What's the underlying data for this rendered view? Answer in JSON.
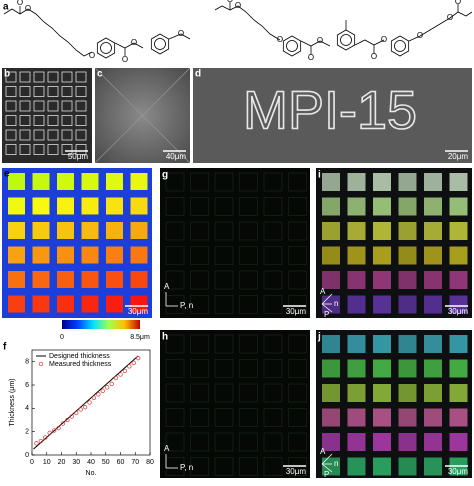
{
  "panels": {
    "a": {
      "label": "a",
      "molecule_1_atoms": [
        "O",
        "O",
        "O",
        "O",
        "O",
        "O"
      ],
      "molecule_2_atoms": [
        "O",
        "O",
        "O",
        "O",
        "O",
        "O",
        "O",
        "O",
        "O",
        "O"
      ]
    },
    "b": {
      "label": "b",
      "scale_bar": "50μm"
    },
    "c": {
      "label": "c",
      "scale_bar": "40μm"
    },
    "d": {
      "label": "d",
      "scale_bar": "20μm",
      "pattern_text": "MPI-15"
    },
    "e": {
      "label": "e",
      "scale_bar": "30μm",
      "colorbar_min": "0",
      "colorbar_max": "8.5μm"
    },
    "f": {
      "label": "f",
      "type": "scatter",
      "x_label": "No.",
      "y_label": "Thickness (μm)",
      "xlim": [
        0,
        80
      ],
      "ylim": [
        0,
        9
      ],
      "xticks": [
        0,
        10,
        20,
        30,
        40,
        50,
        60,
        70,
        80
      ],
      "yticks": [
        0,
        2,
        4,
        6,
        8
      ],
      "series": [
        {
          "name": "Designed thickness",
          "color": "#000000",
          "x": [
            1,
            72
          ],
          "values": [
            0.5,
            8.5
          ]
        },
        {
          "name": "Measured thickness",
          "color": "#e03030",
          "x": [
            3,
            6,
            9,
            12,
            15,
            18,
            21,
            24,
            27,
            30,
            33,
            36,
            39,
            42,
            45,
            48,
            51,
            54,
            57,
            60,
            63,
            66,
            69,
            72
          ],
          "values": [
            1.0,
            1.2,
            1.5,
            1.9,
            2.1,
            2.3,
            2.7,
            3.0,
            3.3,
            3.6,
            3.9,
            4.1,
            4.5,
            4.9,
            5.2,
            5.5,
            5.8,
            6.1,
            6.6,
            6.9,
            7.2,
            7.6,
            7.9,
            8.3
          ]
        }
      ]
    },
    "g": {
      "label": "g",
      "scale_bar": "30μm",
      "analyzer": "A",
      "polarizer": "P, n"
    },
    "h": {
      "label": "h",
      "scale_bar": "30μm",
      "analyzer": "A",
      "polarizer": "P, n"
    },
    "i": {
      "label": "i",
      "scale_bar": "30μm",
      "analyzer": "A",
      "director": "n",
      "polarizer": "P"
    },
    "j": {
      "label": "j",
      "scale_bar": "30μm",
      "analyzer": "A",
      "director": "n",
      "polarizer": "P"
    }
  }
}
